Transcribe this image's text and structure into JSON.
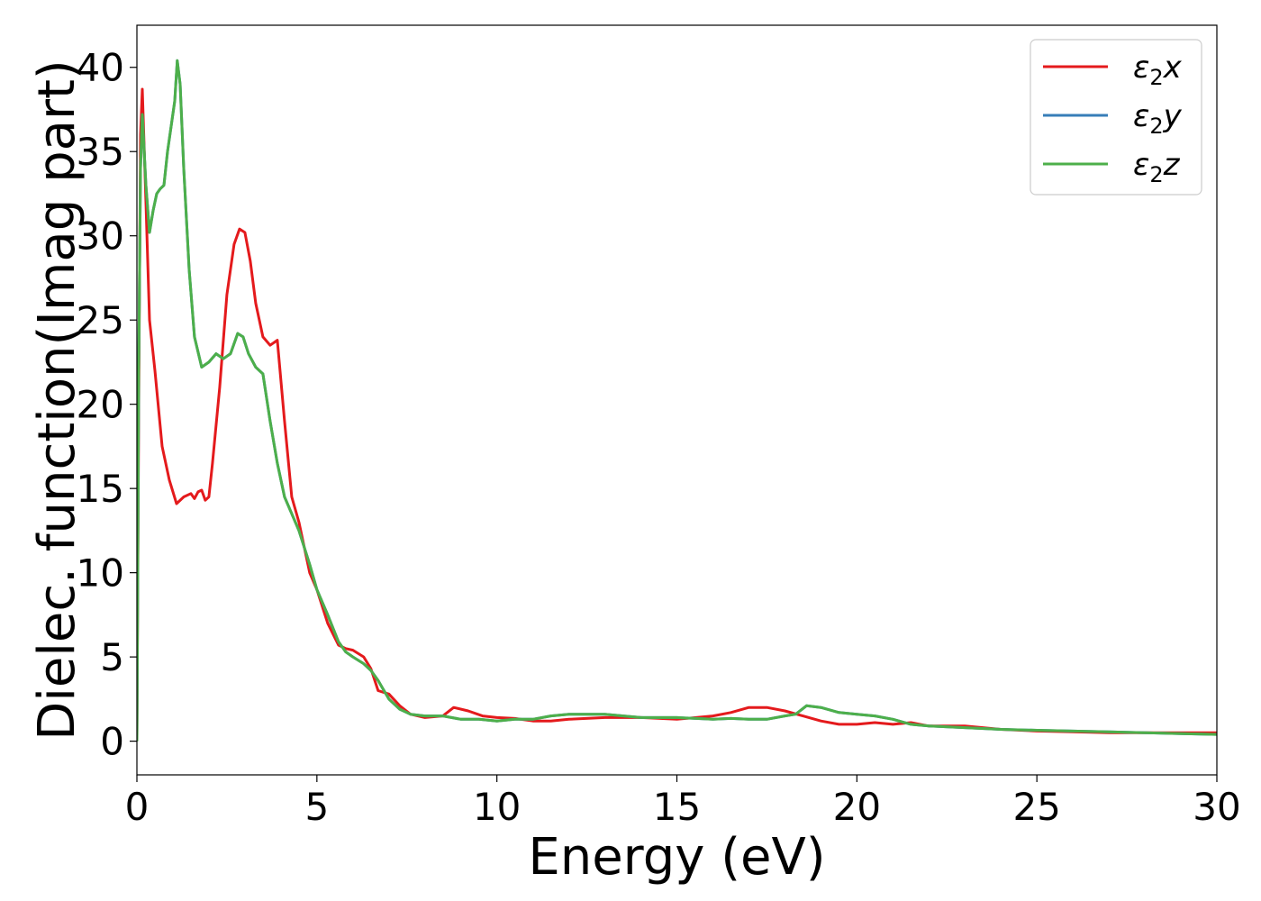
{
  "chart_data": {
    "type": "line",
    "title": "",
    "xlabel": "Energy (eV)",
    "ylabel": "Dielec. function(Imag part)",
    "xlim": [
      0,
      30
    ],
    "ylim": [
      -2,
      42.5
    ],
    "xticks": [
      0,
      5,
      10,
      15,
      20,
      25,
      30
    ],
    "yticks": [
      0,
      5,
      10,
      15,
      20,
      25,
      30,
      35,
      40
    ],
    "grid": false,
    "legend_position": "top-right",
    "series": [
      {
        "name": "ε₂x",
        "legend": {
          "base": "ε",
          "sub": "2",
          "var": "x"
        },
        "color": "#e41a1c",
        "x": [
          0,
          0.05,
          0.1,
          0.15,
          0.25,
          0.35,
          0.5,
          0.7,
          0.9,
          1.1,
          1.3,
          1.5,
          1.6,
          1.7,
          1.8,
          1.9,
          2.0,
          2.1,
          2.3,
          2.5,
          2.7,
          2.85,
          3.0,
          3.15,
          3.3,
          3.5,
          3.7,
          3.9,
          4.1,
          4.3,
          4.5,
          4.8,
          5.0,
          5.3,
          5.6,
          5.8,
          6.0,
          6.3,
          6.5,
          6.7,
          7.0,
          7.3,
          7.6,
          8.0,
          8.5,
          8.8,
          9.2,
          9.6,
          10.0,
          10.5,
          11.0,
          11.5,
          12.0,
          13.0,
          14.0,
          15.0,
          16.0,
          16.5,
          17.0,
          17.5,
          18.0,
          18.5,
          19.0,
          19.5,
          20.0,
          20.5,
          21.0,
          21.5,
          22.0,
          23.0,
          24.0,
          25.0,
          26.0,
          27.0,
          28.0,
          29.0,
          30.0
        ],
        "values": [
          0,
          20,
          36,
          38.7,
          32,
          25,
          22,
          17.5,
          15.5,
          14.1,
          14.5,
          14.7,
          14.4,
          14.8,
          14.9,
          14.3,
          14.5,
          16.5,
          21,
          26.5,
          29.5,
          30.4,
          30.2,
          28.5,
          26,
          24,
          23.5,
          23.8,
          19,
          14.5,
          13,
          10,
          9,
          7,
          5.7,
          5.5,
          5.4,
          5,
          4.3,
          3,
          2.8,
          2.1,
          1.6,
          1.4,
          1.5,
          2.0,
          1.8,
          1.5,
          1.4,
          1.35,
          1.2,
          1.2,
          1.3,
          1.4,
          1.4,
          1.3,
          1.5,
          1.7,
          2.0,
          2.0,
          1.8,
          1.5,
          1.2,
          1.0,
          1.0,
          1.1,
          1.0,
          1.1,
          0.9,
          0.9,
          0.7,
          0.6,
          0.55,
          0.5,
          0.5,
          0.5,
          0.5
        ]
      },
      {
        "name": "ε₂y",
        "legend": {
          "base": "ε",
          "sub": "2",
          "var": "y"
        },
        "color": "#377eb8",
        "x": [
          0,
          0.05,
          0.1,
          0.15,
          0.25,
          0.35,
          0.45,
          0.55,
          0.65,
          0.75,
          0.85,
          0.95,
          1.05,
          1.12,
          1.2,
          1.3,
          1.45,
          1.6,
          1.8,
          2.0,
          2.2,
          2.4,
          2.6,
          2.8,
          2.95,
          3.1,
          3.3,
          3.5,
          3.7,
          3.9,
          4.1,
          4.3,
          4.5,
          4.8,
          5.0,
          5.3,
          5.6,
          5.8,
          6.0,
          6.3,
          6.5,
          6.7,
          7.0,
          7.3,
          7.6,
          8.0,
          8.5,
          9.0,
          9.5,
          10.0,
          10.5,
          11.0,
          11.5,
          12.0,
          13.0,
          14.0,
          15.0,
          16.0,
          16.5,
          17.0,
          17.5,
          18.0,
          18.3,
          18.6,
          19.0,
          19.5,
          20.0,
          20.5,
          21.0,
          21.5,
          22.0,
          23.0,
          24.0,
          25.0,
          26.0,
          27.0,
          28.0,
          29.0,
          30.0
        ],
        "values": [
          0,
          22,
          34,
          37.2,
          33,
          30.2,
          31.5,
          32.5,
          32.8,
          33,
          35,
          36.5,
          38,
          40.4,
          39,
          34,
          28,
          24,
          22.2,
          22.5,
          23.0,
          22.7,
          23.0,
          24.2,
          24.0,
          23.0,
          22.2,
          21.8,
          19,
          16.5,
          14.5,
          13.5,
          12.5,
          10.5,
          9,
          7.5,
          5.9,
          5.3,
          5.0,
          4.6,
          4.2,
          3.6,
          2.5,
          1.9,
          1.6,
          1.5,
          1.5,
          1.3,
          1.3,
          1.2,
          1.3,
          1.3,
          1.5,
          1.6,
          1.6,
          1.4,
          1.4,
          1.3,
          1.35,
          1.3,
          1.3,
          1.5,
          1.6,
          2.1,
          2.0,
          1.7,
          1.6,
          1.5,
          1.3,
          1.0,
          0.9,
          0.8,
          0.7,
          0.65,
          0.6,
          0.55,
          0.5,
          0.45,
          0.4
        ]
      },
      {
        "name": "ε₂z",
        "legend": {
          "base": "ε",
          "sub": "2",
          "var": "z"
        },
        "color": "#4daf4a",
        "x": [
          0,
          0.05,
          0.1,
          0.15,
          0.25,
          0.35,
          0.45,
          0.55,
          0.65,
          0.75,
          0.85,
          0.95,
          1.05,
          1.12,
          1.2,
          1.3,
          1.45,
          1.6,
          1.8,
          2.0,
          2.2,
          2.4,
          2.6,
          2.8,
          2.95,
          3.1,
          3.3,
          3.5,
          3.7,
          3.9,
          4.1,
          4.3,
          4.5,
          4.8,
          5.0,
          5.3,
          5.6,
          5.8,
          6.0,
          6.3,
          6.5,
          6.7,
          7.0,
          7.3,
          7.6,
          8.0,
          8.5,
          9.0,
          9.5,
          10.0,
          10.5,
          11.0,
          11.5,
          12.0,
          13.0,
          14.0,
          15.0,
          16.0,
          16.5,
          17.0,
          17.5,
          18.0,
          18.3,
          18.6,
          19.0,
          19.5,
          20.0,
          20.5,
          21.0,
          21.5,
          22.0,
          23.0,
          24.0,
          25.0,
          26.0,
          27.0,
          28.0,
          29.0,
          30.0
        ],
        "values": [
          0,
          22,
          34,
          37.2,
          33,
          30.2,
          31.5,
          32.5,
          32.8,
          33,
          35,
          36.5,
          38,
          40.4,
          39,
          34,
          28,
          24,
          22.2,
          22.5,
          23.0,
          22.7,
          23.0,
          24.2,
          24.0,
          23.0,
          22.2,
          21.8,
          19,
          16.5,
          14.5,
          13.5,
          12.5,
          10.5,
          9,
          7.5,
          5.9,
          5.3,
          5.0,
          4.6,
          4.2,
          3.6,
          2.5,
          1.9,
          1.6,
          1.5,
          1.5,
          1.3,
          1.3,
          1.2,
          1.3,
          1.3,
          1.5,
          1.6,
          1.6,
          1.4,
          1.4,
          1.3,
          1.35,
          1.3,
          1.3,
          1.5,
          1.6,
          2.1,
          2.0,
          1.7,
          1.6,
          1.5,
          1.3,
          1.0,
          0.9,
          0.8,
          0.7,
          0.65,
          0.6,
          0.55,
          0.5,
          0.45,
          0.4
        ]
      }
    ]
  }
}
